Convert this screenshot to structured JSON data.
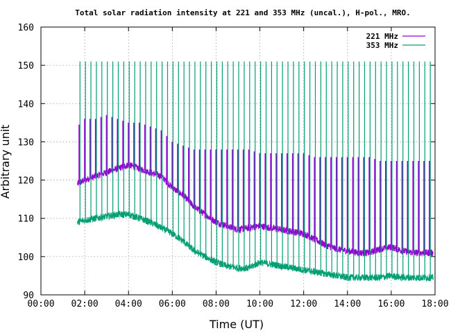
{
  "chart_data": {
    "type": "line",
    "title": "Total solar radiation intensity at 221 and 353 MHz (uncal.), H-pol., MRO.",
    "xlabel": "Time (UT)",
    "ylabel": "Arbitrary unit",
    "xlim": [
      "00:00",
      "18:00"
    ],
    "ylim": [
      90,
      160
    ],
    "x_ticks": [
      "00:00",
      "02:00",
      "04:00",
      "06:00",
      "08:00",
      "10:00",
      "12:00",
      "14:00",
      "16:00",
      "18:00"
    ],
    "y_ticks": [
      90,
      100,
      110,
      120,
      130,
      140,
      150,
      160
    ],
    "grid": true,
    "legend_position": "top-right",
    "calibration_spike_interval_minutes": 15,
    "series": [
      {
        "name": "221 MHz",
        "color": "#9400d3",
        "x": [
          "01:40",
          "02:00",
          "02:30",
          "03:00",
          "03:30",
          "04:00",
          "04:30",
          "05:00",
          "05:30",
          "06:00",
          "06:30",
          "07:00",
          "07:30",
          "08:00",
          "08:30",
          "09:00",
          "09:30",
          "10:00",
          "10:30",
          "11:00",
          "11:30",
          "12:00",
          "12:30",
          "13:00",
          "13:30",
          "14:00",
          "14:30",
          "15:00",
          "15:30",
          "16:00",
          "16:30",
          "17:00",
          "17:30",
          "17:55"
        ],
        "values": [
          119,
          120,
          121,
          122,
          123,
          124,
          123,
          122,
          121,
          118,
          116,
          113,
          111,
          109,
          108,
          107,
          107.5,
          108,
          107.5,
          107,
          106.5,
          106,
          104.5,
          103,
          102,
          101.5,
          101,
          101,
          102,
          102.5,
          101.5,
          101,
          101,
          101
        ],
        "spike_peak": [
          134,
          136,
          136,
          137,
          136,
          135,
          135,
          134,
          133,
          130,
          129,
          128,
          128,
          128,
          128,
          128,
          128,
          127,
          127,
          127,
          127,
          127,
          126,
          126,
          126,
          126,
          126,
          126,
          125,
          125,
          125,
          125,
          125,
          125
        ]
      },
      {
        "name": "353 MHz",
        "color": "#009e73",
        "x": [
          "01:40",
          "02:00",
          "02:30",
          "03:00",
          "03:30",
          "04:00",
          "04:30",
          "05:00",
          "05:30",
          "06:00",
          "06:30",
          "07:00",
          "07:30",
          "08:00",
          "08:30",
          "09:00",
          "09:30",
          "10:00",
          "10:30",
          "11:00",
          "11:30",
          "12:00",
          "12:30",
          "13:00",
          "13:30",
          "14:00",
          "14:30",
          "15:00",
          "15:30",
          "16:00",
          "16:30",
          "17:00",
          "17:30",
          "17:55"
        ],
        "values": [
          109,
          109.5,
          110,
          110.5,
          111,
          111,
          110,
          109,
          107.5,
          106,
          104,
          101.5,
          100,
          98.5,
          97.5,
          97,
          97,
          98.5,
          98,
          97.5,
          97,
          96.5,
          96,
          95.5,
          95,
          94.5,
          94.5,
          94.5,
          94.5,
          95,
          94.5,
          94.5,
          94.5,
          94.5
        ],
        "spike_peak": 151
      }
    ]
  }
}
